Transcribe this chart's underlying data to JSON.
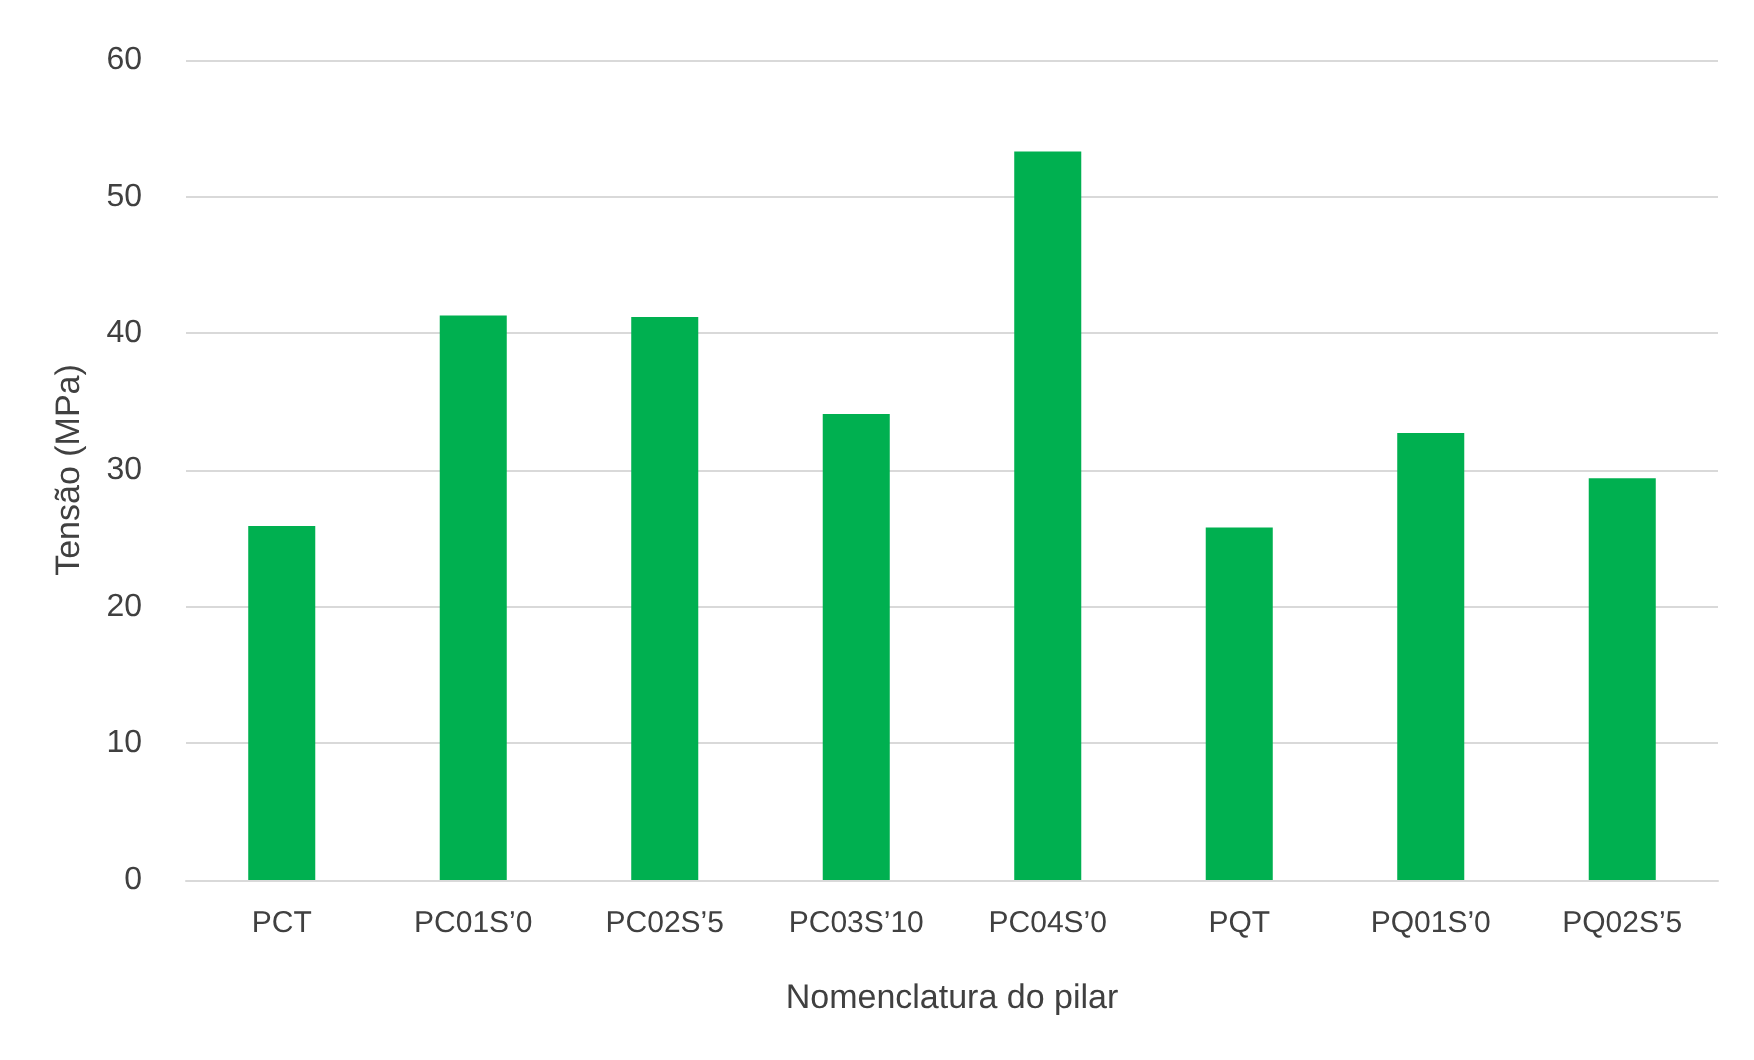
{
  "chart_data": {
    "type": "bar",
    "xlabel": "Nomenclatura do pilar",
    "ylabel": "Tensão (MPa)",
    "categories": [
      "PCT",
      "PC01S’0",
      "PC02S’5",
      "PC03S’10",
      "PC04S’0",
      "PQT",
      "PQ01S’0",
      "PQ02S’5"
    ],
    "values": [
      25.9,
      41.3,
      41.2,
      34.1,
      53.3,
      25.8,
      32.7,
      29.4
    ],
    "color": "#00b050",
    "ylim": [
      0,
      60
    ],
    "yticks": [
      0,
      10,
      20,
      30,
      40,
      50,
      60
    ],
    "grid": "y"
  }
}
